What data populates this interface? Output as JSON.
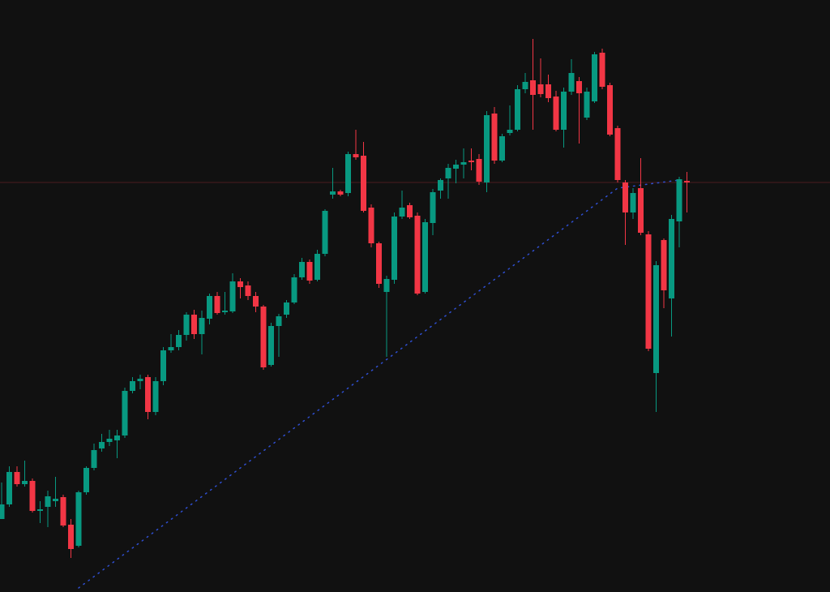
{
  "chart_data": {
    "type": "candlestick",
    "ylim": [
      0,
      730
    ],
    "up_color": "#089981",
    "down_color": "#f23645",
    "open": [
      90,
      108,
      148,
      133,
      137,
      100,
      105,
      112,
      117,
      83,
      57,
      123,
      153,
      177,
      185,
      187,
      193,
      248,
      260,
      265,
      222,
      260,
      298,
      302,
      317,
      342,
      318,
      337,
      365,
      345,
      346,
      383,
      378,
      365,
      352,
      280,
      328,
      342,
      357,
      388,
      407,
      385,
      417,
      490,
      494,
      492,
      540,
      538,
      474,
      430,
      370,
      385,
      463,
      477,
      464,
      370,
      455,
      495,
      510,
      522,
      527,
      532,
      534,
      505,
      590,
      532,
      566,
      570,
      620,
      631,
      626,
      626,
      611,
      570,
      617,
      630,
      585,
      605,
      665,
      625,
      572,
      505,
      468,
      498,
      441,
      270,
      434,
      362,
      457,
      507
    ],
    "high": [
      135,
      155,
      155,
      162,
      140,
      112,
      125,
      142,
      120,
      90,
      125,
      155,
      183,
      195,
      200,
      200,
      252,
      265,
      268,
      268,
      265,
      302,
      318,
      323,
      345,
      348,
      347,
      368,
      370,
      370,
      393,
      387,
      383,
      370,
      354,
      332,
      343,
      360,
      392,
      412,
      410,
      422,
      472,
      523,
      496,
      543,
      570,
      555,
      478,
      432,
      390,
      468,
      495,
      480,
      468,
      460,
      497,
      510,
      528,
      533,
      547,
      547,
      540,
      593,
      598,
      565,
      600,
      625,
      640,
      682,
      658,
      638,
      618,
      622,
      657,
      635,
      622,
      666,
      670,
      628,
      575,
      508,
      498,
      535,
      445,
      408,
      436,
      465,
      512,
      518
    ],
    "low": [
      90,
      105,
      130,
      130,
      98,
      85,
      80,
      105,
      80,
      42,
      55,
      120,
      150,
      173,
      180,
      165,
      190,
      245,
      250,
      213,
      218,
      255,
      295,
      298,
      310,
      312,
      293,
      330,
      342,
      342,
      344,
      362,
      360,
      345,
      274,
      278,
      290,
      338,
      355,
      385,
      380,
      383,
      414,
      485,
      488,
      488,
      533,
      468,
      425,
      375,
      290,
      380,
      460,
      460,
      366,
      368,
      440,
      485,
      485,
      504,
      510,
      520,
      502,
      493,
      528,
      530,
      563,
      568,
      615,
      570,
      610,
      604,
      568,
      548,
      613,
      553,
      582,
      603,
      620,
      562,
      505,
      428,
      460,
      440,
      297,
      222,
      350,
      315,
      425,
      468
    ],
    "close": [
      108,
      148,
      133,
      137,
      100,
      102,
      118,
      115,
      82,
      53,
      123,
      153,
      175,
      185,
      189,
      193,
      248,
      260,
      263,
      222,
      260,
      298,
      302,
      317,
      342,
      318,
      338,
      365,
      344,
      347,
      383,
      376,
      365,
      352,
      277,
      328,
      340,
      357,
      388,
      407,
      384,
      417,
      470,
      494,
      490,
      540,
      536,
      470,
      430,
      380,
      386,
      463,
      474,
      462,
      368,
      456,
      493,
      508,
      523,
      527,
      530,
      530,
      506,
      588,
      532,
      562,
      570,
      620,
      629,
      613,
      614,
      609,
      570,
      617,
      640,
      615,
      617,
      663,
      623,
      564,
      508,
      468,
      492,
      443,
      300,
      403,
      372,
      460,
      509,
      505
    ],
    "price_line": {
      "value": 505,
      "color": "#4a1c1f"
    },
    "moving_average": {
      "color": "#2f4fd0",
      "x": [
        10,
        80,
        88
      ],
      "values": [
        5,
        498,
        508
      ]
    }
  }
}
